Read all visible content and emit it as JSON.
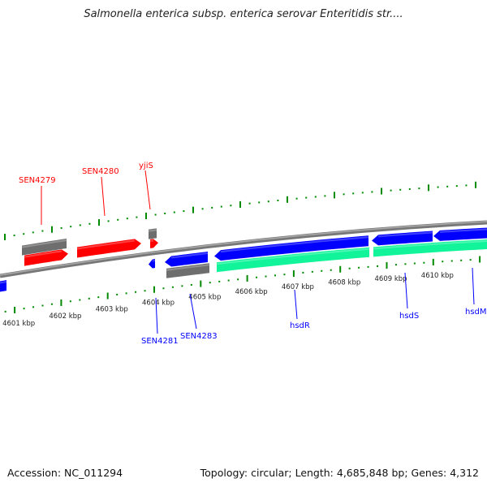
{
  "title": "Salmonella enterica subsp. enterica serovar Enteritidis str....",
  "accession": "Accession: NC_011294",
  "summary": "Topology: circular; Length: 4,685,848 bp; Genes: 4,312",
  "colors": {
    "forward_cds": "#ff0000",
    "reverse_cds": "#0000ff",
    "gray": "#6e6e6e",
    "green": "#11f49a",
    "ticks": "#008a00",
    "backbone": "#888888",
    "forward_label": "#ff0000",
    "reverse_label": "#0000ff"
  },
  "tick_labels": [
    "4601 kbp",
    "4602 kbp",
    "4603 kbp",
    "4604 kbp",
    "4605 kbp",
    "4606 kbp",
    "4607 kbp",
    "4608 kbp",
    "4609 kbp",
    "4610 kbp"
  ],
  "gene_labels": [
    {
      "name": "SEN4279",
      "strand": "forward"
    },
    {
      "name": "SEN4280",
      "strand": "forward"
    },
    {
      "name": "yjiS",
      "strand": "forward"
    },
    {
      "name": "SEN4281",
      "strand": "reverse"
    },
    {
      "name": "SEN4283",
      "strand": "reverse"
    },
    {
      "name": "hsdR",
      "strand": "reverse"
    },
    {
      "name": "hsdS",
      "strand": "reverse"
    },
    {
      "name": "hsdM",
      "strand": "reverse"
    }
  ]
}
